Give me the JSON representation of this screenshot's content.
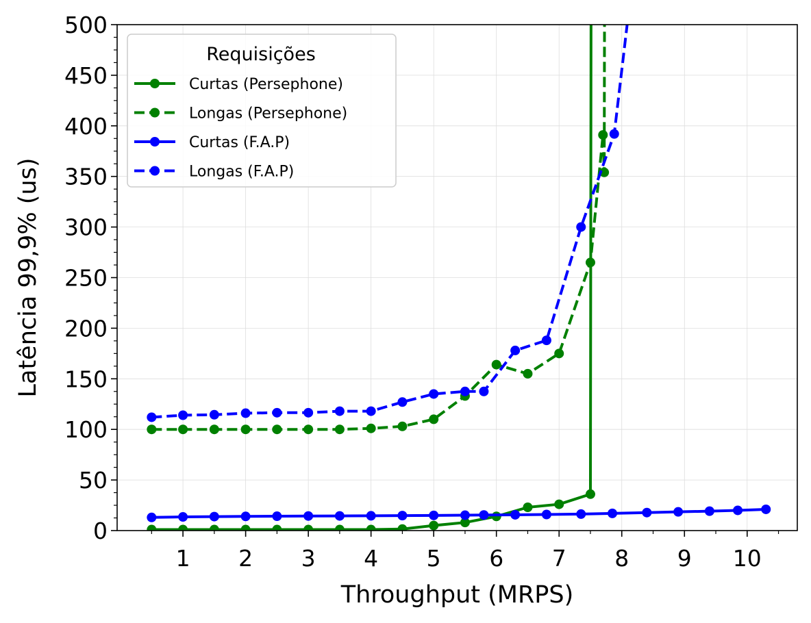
{
  "chart_data": {
    "type": "line",
    "title": "",
    "xlabel": "Throughput (MRPS)",
    "ylabel": "Latência 99,9% (us)",
    "xlim": [
      -0.05,
      10.8
    ],
    "ylim": [
      0,
      500
    ],
    "xticks": [
      1,
      2,
      3,
      4,
      5,
      6,
      7,
      8,
      9,
      10
    ],
    "yticks": [
      0,
      50,
      100,
      150,
      200,
      250,
      300,
      350,
      400,
      450,
      500
    ],
    "xtick_labels": [
      "1",
      "2",
      "3",
      "4",
      "5",
      "6",
      "7",
      "8",
      "9",
      "10"
    ],
    "ytick_labels": [
      "0",
      "50",
      "100",
      "150",
      "200",
      "250",
      "300",
      "350",
      "400",
      "450",
      "500"
    ],
    "grid": true,
    "legend": {
      "title": "Requisições",
      "position": "top-left"
    },
    "series": [
      {
        "name": "Curtas (Persephone)",
        "color": "#008000",
        "dash": "solid",
        "points": [
          [
            0.5,
            1
          ],
          [
            1.0,
            1
          ],
          [
            1.5,
            1
          ],
          [
            2.0,
            1
          ],
          [
            2.5,
            1
          ],
          [
            3.0,
            1
          ],
          [
            3.5,
            1
          ],
          [
            4.0,
            1
          ],
          [
            4.5,
            1.5
          ],
          [
            5.0,
            5
          ],
          [
            5.5,
            8
          ],
          [
            6.0,
            14
          ],
          [
            6.5,
            23
          ],
          [
            7.0,
            26
          ],
          [
            7.5,
            36
          ],
          [
            7.52,
            1000
          ]
        ]
      },
      {
        "name": "Longas (Persephone)",
        "color": "#008000",
        "dash": "dashed",
        "points": [
          [
            0.5,
            100
          ],
          [
            1.0,
            100
          ],
          [
            1.5,
            100
          ],
          [
            2.0,
            100
          ],
          [
            2.5,
            100
          ],
          [
            3.0,
            100
          ],
          [
            3.5,
            100
          ],
          [
            4.0,
            101
          ],
          [
            4.5,
            103
          ],
          [
            5.0,
            110
          ],
          [
            5.5,
            133
          ],
          [
            6.0,
            164
          ],
          [
            6.5,
            155
          ],
          [
            7.0,
            175
          ],
          [
            7.5,
            265
          ],
          [
            7.7,
            391
          ],
          [
            7.72,
            354
          ],
          [
            7.74,
            1000
          ]
        ]
      },
      {
        "name": "Curtas (F.A.P)",
        "color": "#0000ff",
        "dash": "solid",
        "points": [
          [
            0.5,
            13
          ],
          [
            1.0,
            13.5
          ],
          [
            1.5,
            13.8
          ],
          [
            2.0,
            14
          ],
          [
            2.5,
            14.2
          ],
          [
            3.0,
            14.4
          ],
          [
            3.5,
            14.5
          ],
          [
            4.0,
            14.6
          ],
          [
            4.5,
            14.8
          ],
          [
            5.0,
            15
          ],
          [
            5.5,
            15.2
          ],
          [
            5.8,
            15.4
          ],
          [
            6.3,
            15.6
          ],
          [
            6.8,
            15.9
          ],
          [
            7.35,
            16.3
          ],
          [
            7.85,
            17
          ],
          [
            8.4,
            17.8
          ],
          [
            8.9,
            18.5
          ],
          [
            9.4,
            19.2
          ],
          [
            9.85,
            20
          ],
          [
            10.3,
            21
          ]
        ]
      },
      {
        "name": "Longas (F.A.P)",
        "color": "#0000ff",
        "dash": "dashed",
        "points": [
          [
            0.5,
            112
          ],
          [
            1.0,
            114
          ],
          [
            1.5,
            114.5
          ],
          [
            2.0,
            116
          ],
          [
            2.5,
            116.5
          ],
          [
            3.0,
            116.5
          ],
          [
            3.5,
            118
          ],
          [
            4.0,
            118
          ],
          [
            4.5,
            127
          ],
          [
            5.0,
            135
          ],
          [
            5.5,
            137.5
          ],
          [
            5.8,
            137.5
          ],
          [
            6.3,
            178
          ],
          [
            6.8,
            188
          ],
          [
            7.35,
            300
          ],
          [
            7.88,
            392
          ],
          [
            8.2,
            560
          ]
        ]
      }
    ]
  }
}
